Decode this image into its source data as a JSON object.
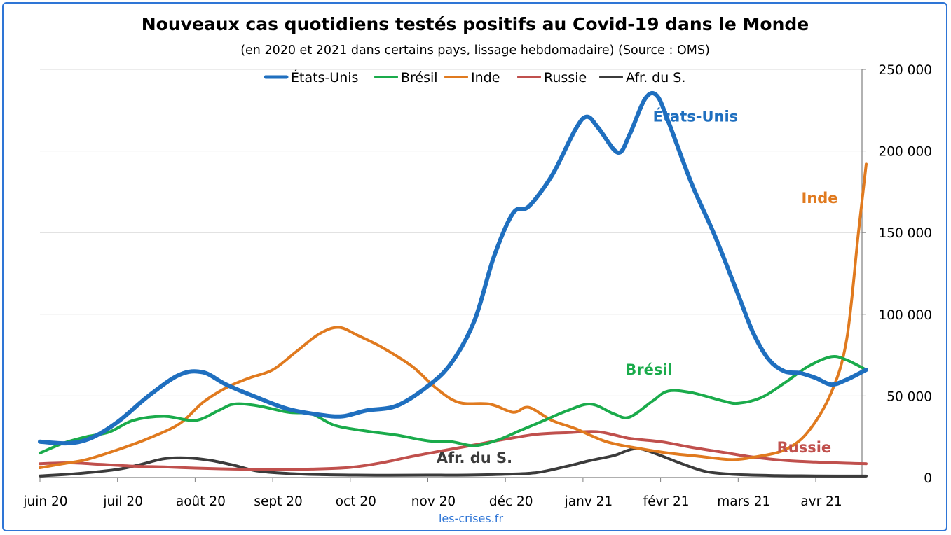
{
  "chart_data": {
    "type": "line",
    "title": "Nouveaux cas quotidiens testés positifs au Covid-19 dans le Monde",
    "subtitle": "(en 2020 et 2021 dans certains pays, lissage hebdomadaire) (Source : OMS)",
    "source_label": "les-crises.fr",
    "x_labels": [
      "juin 20",
      "juil 20",
      "août 20",
      "sept 20",
      "oct 20",
      "nov 20",
      "déc 20",
      "janv 21",
      "févr 21",
      "mars 21",
      "avr 21"
    ],
    "x_range": [
      0,
      10.65
    ],
    "y_range": [
      0,
      250000
    ],
    "y_ticks": [
      0,
      50000,
      100000,
      150000,
      200000,
      250000
    ],
    "y_tick_labels": [
      "0",
      "50 000",
      "100 000",
      "150 000",
      "200 000",
      "250 000"
    ],
    "y_axis_side": "right",
    "grid": "horizontal",
    "legend_position": "top",
    "series": [
      {
        "name": "États-Unis",
        "color": "#1f6fbf",
        "points": [
          [
            0,
            22000
          ],
          [
            0.35,
            21000
          ],
          [
            0.65,
            24000
          ],
          [
            1,
            34000
          ],
          [
            1.4,
            50000
          ],
          [
            1.8,
            63000
          ],
          [
            2.1,
            64500
          ],
          [
            2.4,
            57000
          ],
          [
            2.8,
            49000
          ],
          [
            3.2,
            42000
          ],
          [
            3.6,
            38500
          ],
          [
            3.9,
            37500
          ],
          [
            4.2,
            41000
          ],
          [
            4.6,
            44000
          ],
          [
            5,
            56000
          ],
          [
            5.3,
            70000
          ],
          [
            5.6,
            96000
          ],
          [
            5.85,
            135000
          ],
          [
            6.1,
            162000
          ],
          [
            6.3,
            166000
          ],
          [
            6.6,
            185000
          ],
          [
            6.9,
            213000
          ],
          [
            7.05,
            221000
          ],
          [
            7.2,
            214000
          ],
          [
            7.45,
            199000
          ],
          [
            7.6,
            210000
          ],
          [
            7.8,
            232000
          ],
          [
            7.95,
            234000
          ],
          [
            8.1,
            218000
          ],
          [
            8.4,
            180000
          ],
          [
            8.7,
            148000
          ],
          [
            9,
            112000
          ],
          [
            9.2,
            88000
          ],
          [
            9.4,
            72000
          ],
          [
            9.6,
            65000
          ],
          [
            9.8,
            64000
          ],
          [
            10,
            61000
          ],
          [
            10.2,
            57000
          ],
          [
            10.4,
            60000
          ],
          [
            10.65,
            66000
          ]
        ]
      },
      {
        "name": "Brésil",
        "color": "#1aab4b",
        "points": [
          [
            0,
            15000
          ],
          [
            0.3,
            21000
          ],
          [
            0.6,
            25000
          ],
          [
            0.9,
            28000
          ],
          [
            1.2,
            35000
          ],
          [
            1.6,
            37500
          ],
          [
            2,
            35000
          ],
          [
            2.3,
            41000
          ],
          [
            2.5,
            45000
          ],
          [
            2.8,
            44000
          ],
          [
            3.2,
            40000
          ],
          [
            3.5,
            39000
          ],
          [
            3.8,
            32000
          ],
          [
            4.2,
            28500
          ],
          [
            4.6,
            26000
          ],
          [
            5,
            22500
          ],
          [
            5.3,
            22000
          ],
          [
            5.6,
            19500
          ],
          [
            5.9,
            23000
          ],
          [
            6.2,
            29000
          ],
          [
            6.5,
            35000
          ],
          [
            6.8,
            41000
          ],
          [
            7.1,
            45000
          ],
          [
            7.4,
            39000
          ],
          [
            7.6,
            37000
          ],
          [
            7.9,
            47000
          ],
          [
            8.1,
            53000
          ],
          [
            8.4,
            52000
          ],
          [
            8.8,
            47000
          ],
          [
            9,
            45500
          ],
          [
            9.3,
            49000
          ],
          [
            9.6,
            58000
          ],
          [
            9.9,
            68000
          ],
          [
            10.2,
            74000
          ],
          [
            10.4,
            72000
          ],
          [
            10.65,
            66000
          ]
        ]
      },
      {
        "name": "Inde",
        "color": "#e07a1f",
        "points": [
          [
            0,
            6000
          ],
          [
            0.3,
            8500
          ],
          [
            0.6,
            11000
          ],
          [
            1,
            17000
          ],
          [
            1.4,
            24000
          ],
          [
            1.8,
            33000
          ],
          [
            2.1,
            46000
          ],
          [
            2.4,
            55000
          ],
          [
            2.7,
            61000
          ],
          [
            3,
            66000
          ],
          [
            3.3,
            77000
          ],
          [
            3.6,
            88000
          ],
          [
            3.85,
            92000
          ],
          [
            4.1,
            87000
          ],
          [
            4.4,
            80000
          ],
          [
            4.8,
            68000
          ],
          [
            5.1,
            55000
          ],
          [
            5.4,
            46000
          ],
          [
            5.8,
            45000
          ],
          [
            6.1,
            40000
          ],
          [
            6.3,
            43000
          ],
          [
            6.6,
            35000
          ],
          [
            6.9,
            30000
          ],
          [
            7.3,
            22000
          ],
          [
            7.7,
            18000
          ],
          [
            8.1,
            15000
          ],
          [
            8.5,
            13000
          ],
          [
            8.9,
            11000
          ],
          [
            9.2,
            12500
          ],
          [
            9.6,
            17000
          ],
          [
            9.9,
            28000
          ],
          [
            10.2,
            52000
          ],
          [
            10.4,
            85000
          ],
          [
            10.55,
            150000
          ],
          [
            10.65,
            192000
          ]
        ]
      },
      {
        "name": "Russie",
        "color": "#c0504d",
        "points": [
          [
            0,
            8500
          ],
          [
            0.4,
            9000
          ],
          [
            0.8,
            8000
          ],
          [
            1.2,
            7000
          ],
          [
            1.6,
            6500
          ],
          [
            2,
            5800
          ],
          [
            2.5,
            5200
          ],
          [
            3,
            5000
          ],
          [
            3.5,
            5200
          ],
          [
            4,
            6200
          ],
          [
            4.4,
            9000
          ],
          [
            4.8,
            13000
          ],
          [
            5.2,
            16500
          ],
          [
            5.6,
            20000
          ],
          [
            6,
            23500
          ],
          [
            6.4,
            26500
          ],
          [
            6.8,
            27500
          ],
          [
            7.2,
            28000
          ],
          [
            7.6,
            24000
          ],
          [
            8,
            22000
          ],
          [
            8.4,
            18500
          ],
          [
            8.8,
            15500
          ],
          [
            9.2,
            12500
          ],
          [
            9.6,
            10500
          ],
          [
            10,
            9500
          ],
          [
            10.4,
            8800
          ],
          [
            10.65,
            8500
          ]
        ]
      },
      {
        "name": "Afr. du S.",
        "color": "#3b3b3b",
        "points": [
          [
            0,
            1000
          ],
          [
            0.5,
            2500
          ],
          [
            1,
            5000
          ],
          [
            1.3,
            8000
          ],
          [
            1.6,
            11500
          ],
          [
            1.9,
            12000
          ],
          [
            2.2,
            10500
          ],
          [
            2.5,
            7500
          ],
          [
            2.8,
            4000
          ],
          [
            3.2,
            2500
          ],
          [
            3.6,
            1800
          ],
          [
            4,
            1500
          ],
          [
            4.5,
            1400
          ],
          [
            5,
            1500
          ],
          [
            5.5,
            1500
          ],
          [
            6,
            2000
          ],
          [
            6.4,
            3000
          ],
          [
            6.8,
            7000
          ],
          [
            7.1,
            10500
          ],
          [
            7.4,
            13500
          ],
          [
            7.6,
            17000
          ],
          [
            7.75,
            17500
          ],
          [
            8,
            13500
          ],
          [
            8.3,
            8000
          ],
          [
            8.6,
            3500
          ],
          [
            9,
            1800
          ],
          [
            9.5,
            1200
          ],
          [
            10,
            1000
          ],
          [
            10.65,
            900
          ]
        ]
      }
    ],
    "annotations": [
      {
        "text": "États-Unis",
        "series": "États-Unis",
        "x": 8.45,
        "y": 218000
      },
      {
        "text": "Inde",
        "series": "Inde",
        "x": 10.05,
        "y": 168000
      },
      {
        "text": "Brésil",
        "series": "Brésil",
        "x": 7.85,
        "y": 63000
      },
      {
        "text": "Russie",
        "series": "Russie",
        "x": 9.85,
        "y": 15500
      },
      {
        "text": "Afr. du S.",
        "series": "Afr. du S.",
        "x": 5.6,
        "y": 9000
      }
    ]
  }
}
